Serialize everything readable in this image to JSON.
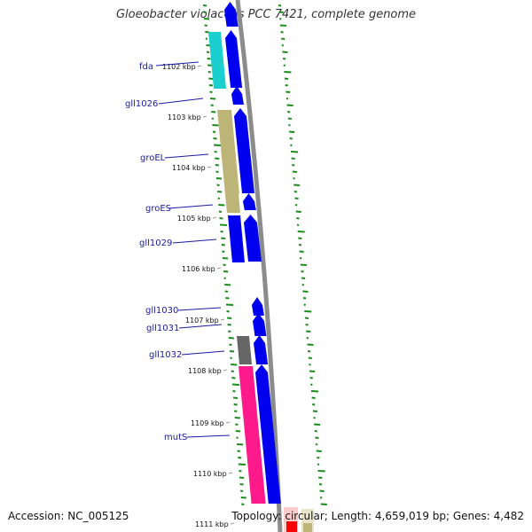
{
  "title": "Gloeobacter violaceus PCC 7421, complete genome",
  "footer": {
    "accession": "Accession: NC_005125",
    "summary": "Topology: circular; Length: 4,659,019 bp; Genes: 4,482"
  },
  "colors": {
    "cds_blue": "#0000ee",
    "gene_cyan": "#1ccfcf",
    "gene_olive": "#bdb478",
    "gene_gray": "#666666",
    "gene_pink": "#ff1a8c",
    "backbone": "#8c8c8c",
    "gc_green": "#1a8c1a",
    "label_blue": "#1a1aa6"
  },
  "kbp_ticks": [
    "1102 kbp",
    "1103 kbp",
    "1104 kbp",
    "1105 kbp",
    "1106 kbp",
    "1107 kbp",
    "1108 kbp",
    "1109 kbp",
    "1110 kbp",
    "1111 kbp"
  ],
  "gene_labels": [
    "fda",
    "gll1026",
    "groEL",
    "groES",
    "gll1029",
    "gll1030",
    "gll1031",
    "gll1032",
    "mutS"
  ]
}
